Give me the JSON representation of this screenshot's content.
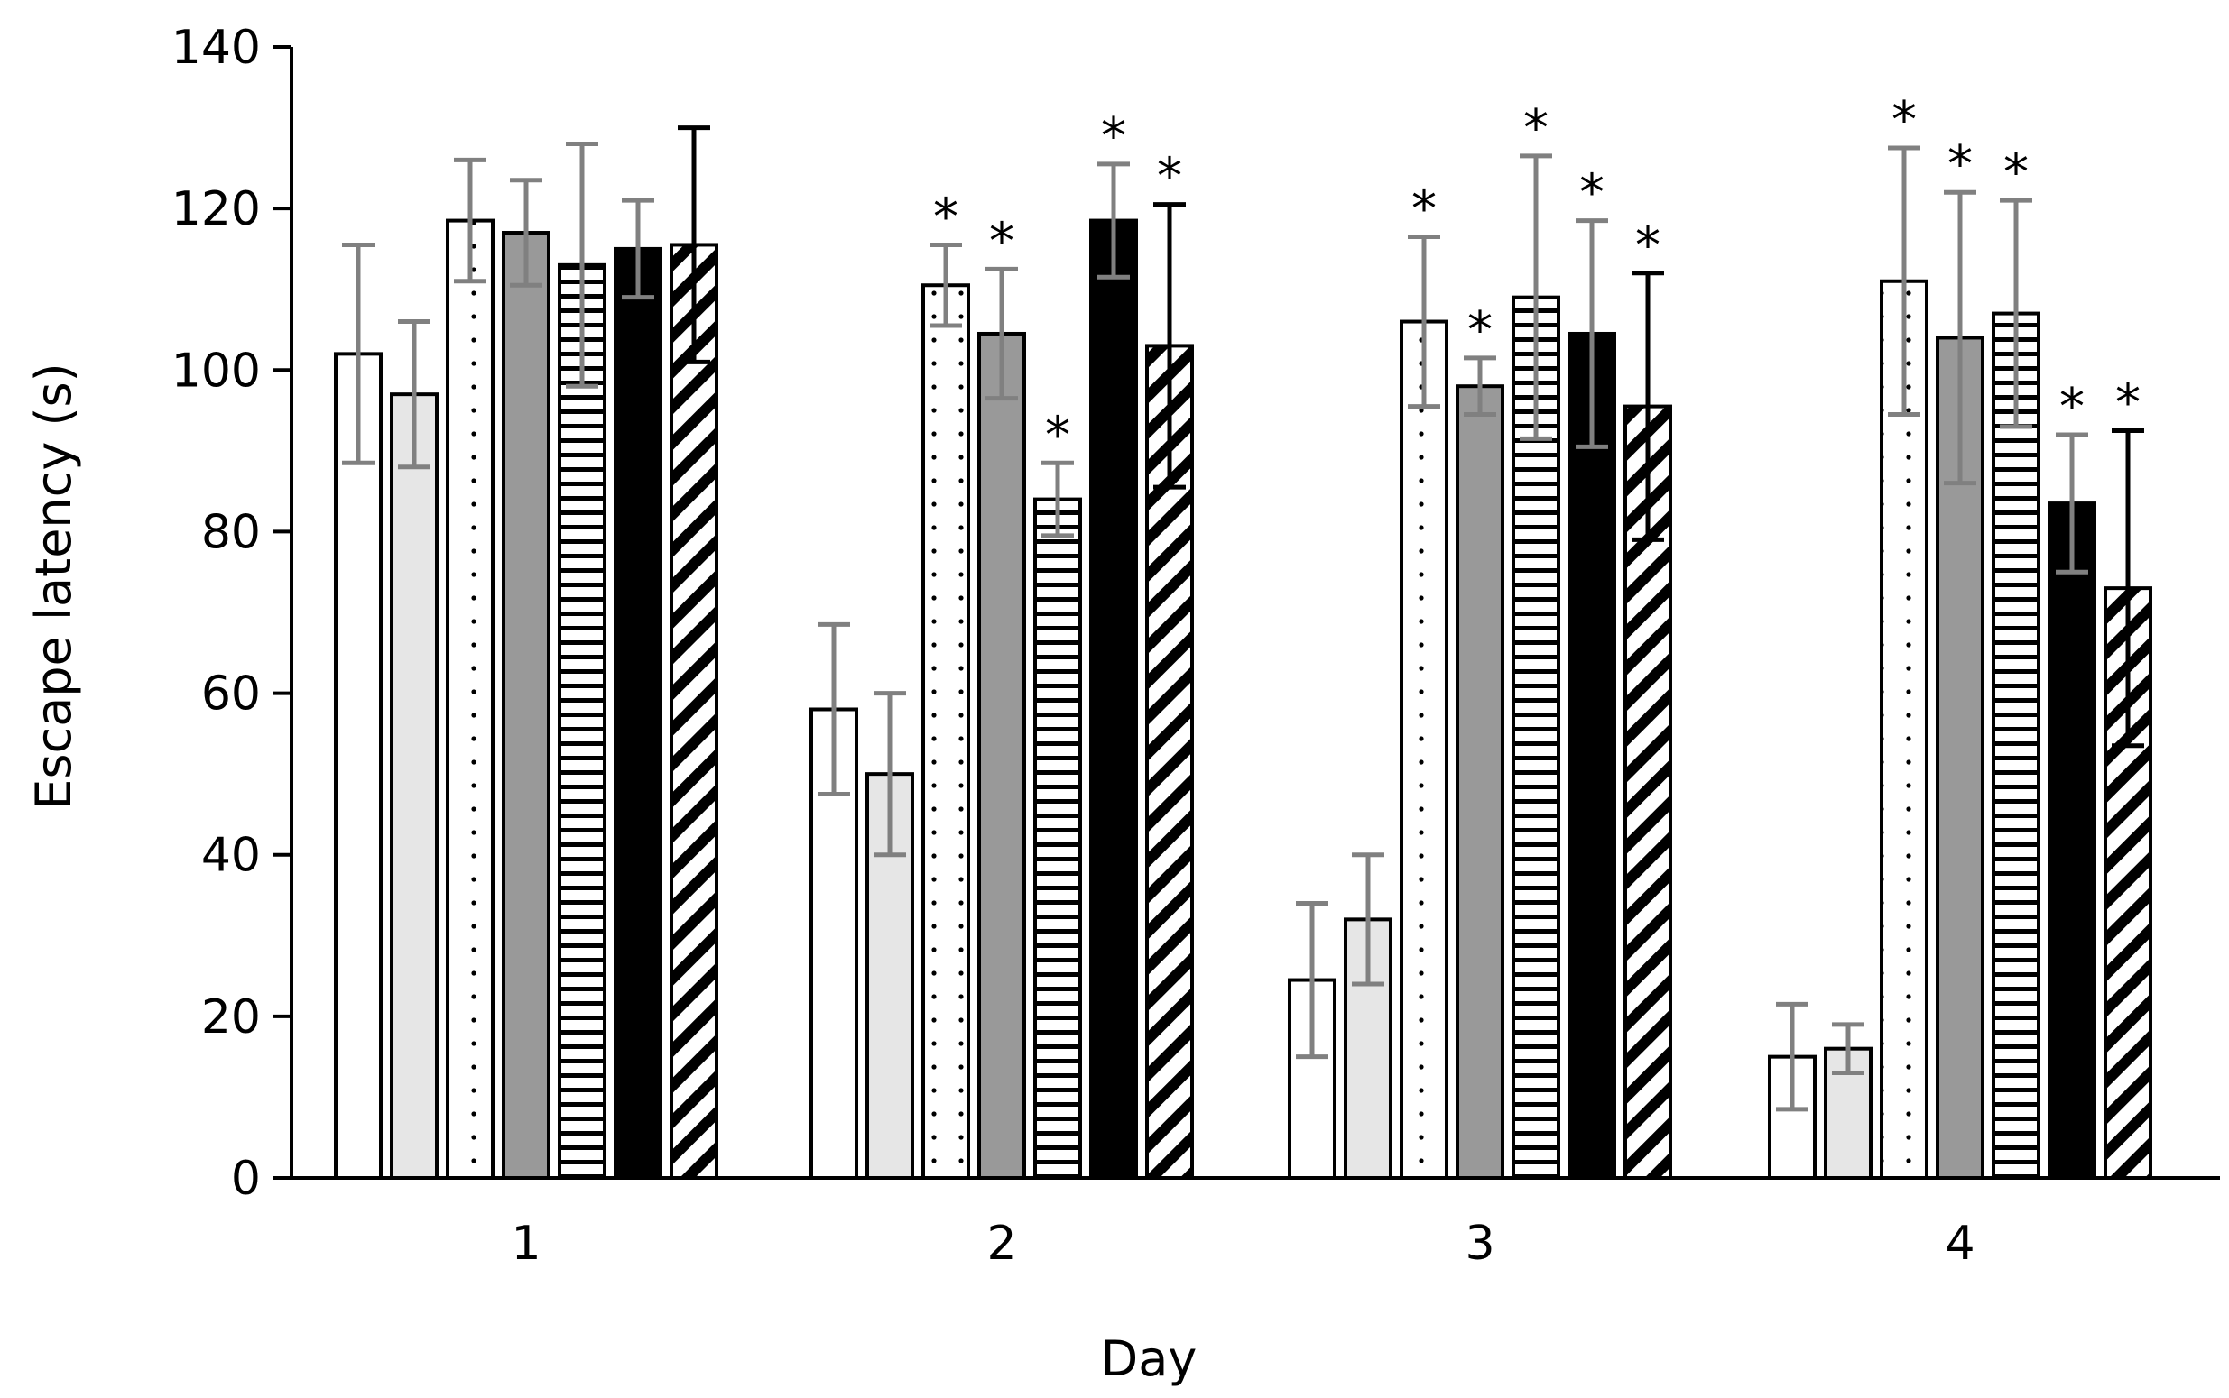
{
  "chart_data": {
    "type": "bar",
    "title": "",
    "xlabel": "Day",
    "ylabel": "Escape latency (s)",
    "ylim": [
      0,
      140
    ],
    "yticks": [
      "0",
      "20",
      "40",
      "60",
      "80",
      "100",
      "120",
      "140"
    ],
    "categories": [
      "1",
      "2",
      "3",
      "4"
    ],
    "significance_marker": "*",
    "grid": false,
    "legend": "none",
    "series": [
      {
        "name": "series-1",
        "fill": "#ffffff",
        "pattern": "solid",
        "err_color": "#808080",
        "values": [
          102,
          58,
          24.5,
          15
        ],
        "errors": [
          13.5,
          10.5,
          9.5,
          6.5
        ],
        "significant": [
          false,
          false,
          false,
          false
        ]
      },
      {
        "name": "series-2",
        "fill": "#e6e6e6",
        "pattern": "solid",
        "err_color": "#808080",
        "values": [
          97,
          50,
          32,
          16
        ],
        "errors": [
          9,
          10,
          8,
          3
        ],
        "significant": [
          false,
          false,
          false,
          false
        ]
      },
      {
        "name": "series-3",
        "fill": "#ffffff",
        "pattern": "dots",
        "err_color": "#808080",
        "values": [
          118.5,
          110.5,
          106,
          111
        ],
        "errors": [
          7.5,
          5,
          10.5,
          16.5
        ],
        "significant": [
          false,
          true,
          true,
          true
        ]
      },
      {
        "name": "series-4",
        "fill": "#999999",
        "pattern": "solid",
        "err_color": "#808080",
        "values": [
          117,
          104.5,
          98,
          104
        ],
        "errors": [
          6.5,
          8,
          3.5,
          18
        ],
        "significant": [
          false,
          true,
          true,
          true
        ]
      },
      {
        "name": "series-5",
        "fill": "#ffffff",
        "pattern": "hlines",
        "err_color": "#808080",
        "values": [
          113,
          84,
          109,
          107
        ],
        "errors": [
          15,
          4.5,
          17.5,
          14
        ],
        "significant": [
          false,
          true,
          true,
          true
        ]
      },
      {
        "name": "series-6",
        "fill": "#000000",
        "pattern": "solid",
        "err_color": "#808080",
        "values": [
          115,
          118.5,
          104.5,
          83.5
        ],
        "errors": [
          6,
          7,
          14,
          8.5
        ],
        "significant": [
          false,
          true,
          true,
          true
        ]
      },
      {
        "name": "series-7",
        "fill": "#ffffff",
        "pattern": "diagonal",
        "err_color": "#000000",
        "values": [
          115.5,
          103,
          95.5,
          73
        ],
        "errors": [
          14.5,
          17.5,
          16.5,
          19.5
        ],
        "significant": [
          false,
          true,
          true,
          true
        ]
      }
    ]
  }
}
